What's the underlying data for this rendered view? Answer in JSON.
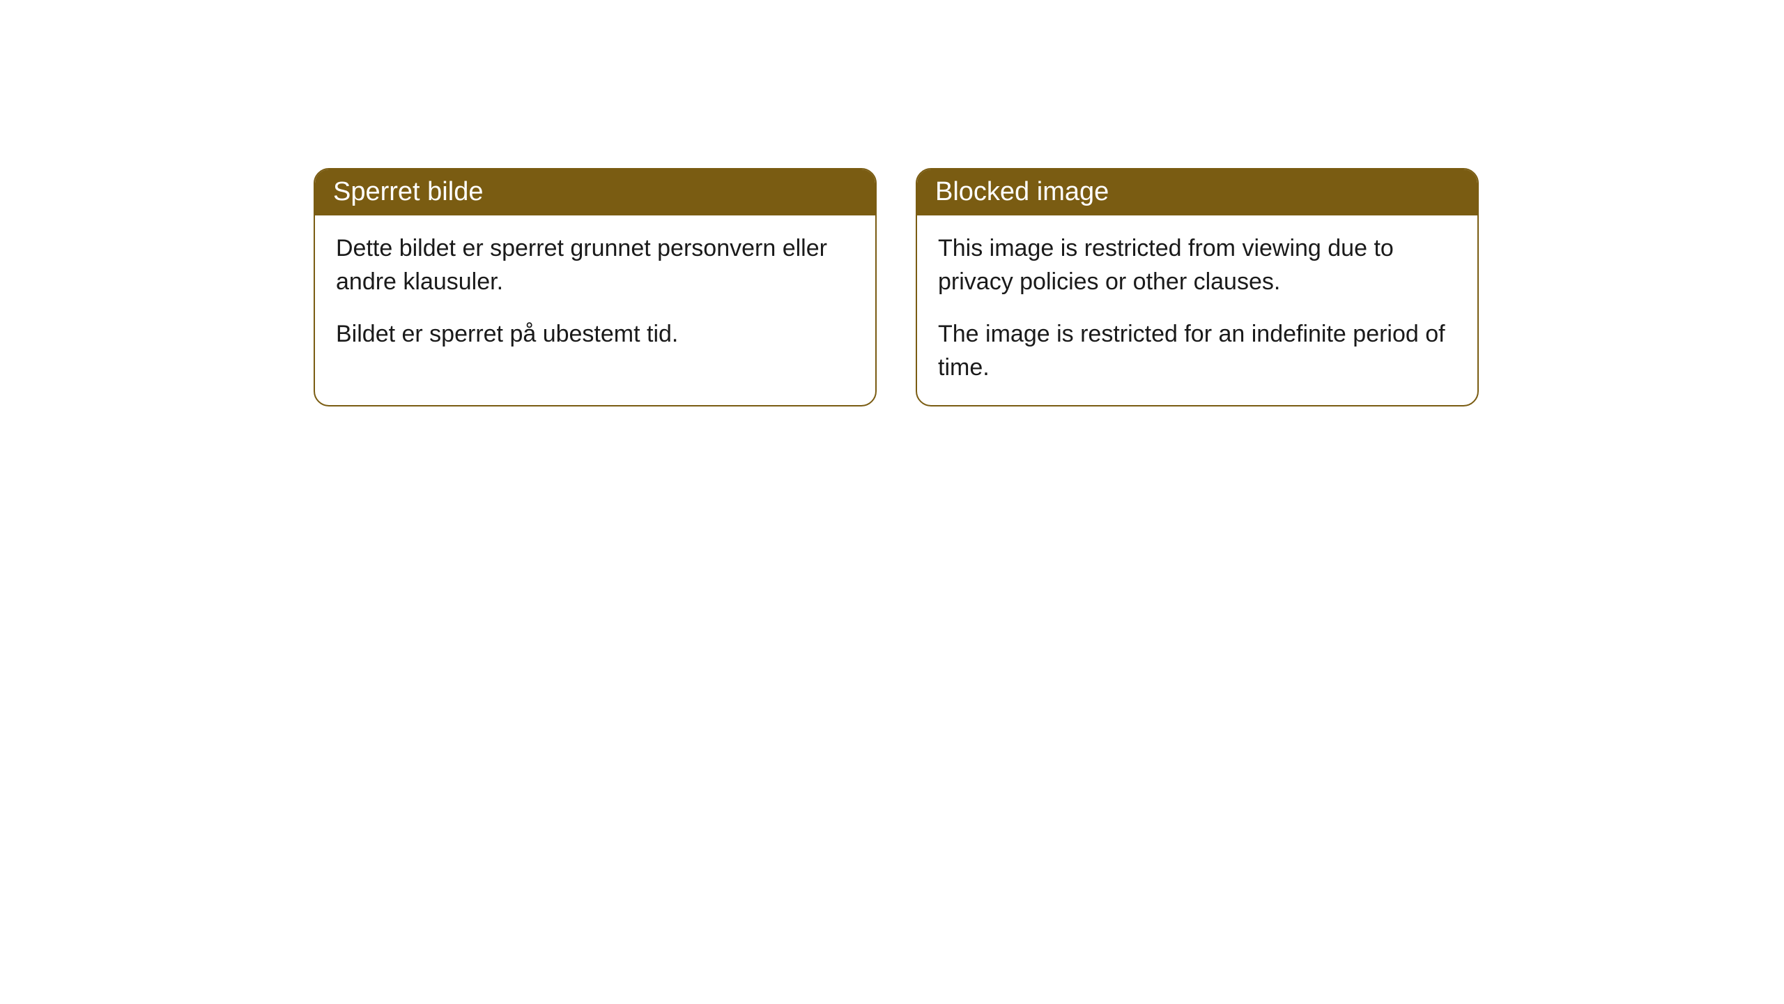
{
  "cards": [
    {
      "title": "Sperret bilde",
      "paragraph1": "Dette bildet er sperret grunnet personvern eller andre klausuler.",
      "paragraph2": "Bildet er sperret på ubestemt tid."
    },
    {
      "title": "Blocked image",
      "paragraph1": "This image is restricted from viewing due to privacy policies or other clauses.",
      "paragraph2": "The image is restricted for an indefinite period of time."
    }
  ],
  "styling": {
    "header_background": "#7a5c12",
    "header_text_color": "#ffffff",
    "border_color": "#7a5c12",
    "body_text_color": "#1a1a1a",
    "page_background": "#ffffff",
    "card_background": "#ffffff",
    "border_radius": 22,
    "header_fontsize": 38,
    "body_fontsize": 34
  }
}
